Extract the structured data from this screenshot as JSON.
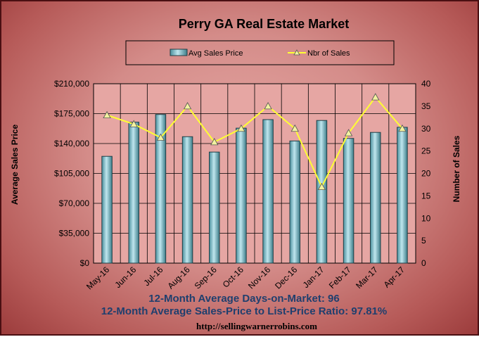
{
  "chart_data": {
    "type": "bar",
    "title": "Perry GA Real Estate Market",
    "categories": [
      "May-16",
      "Jun-16",
      "Jul-16",
      "Aug-16",
      "Sep-16",
      "Oct-16",
      "Nov-16",
      "Dec-16",
      "Jan-17",
      "Feb-17",
      "Mar-17",
      "Apr-17"
    ],
    "series": [
      {
        "name": "Avg Sales Price",
        "type": "bar",
        "axis": "left",
        "values": [
          125000,
          165000,
          174000,
          148000,
          130000,
          158000,
          168000,
          143000,
          167000,
          146000,
          153000,
          159000
        ]
      },
      {
        "name": "Nbr of Sales",
        "type": "line",
        "axis": "right",
        "values": [
          33,
          31,
          28,
          35,
          27,
          30,
          35,
          30,
          17,
          29,
          37,
          30
        ]
      }
    ],
    "ylabel": "Average Sales Price",
    "ylim": [
      0,
      210000
    ],
    "yticks": [
      "$0",
      "$35,000",
      "$70,000",
      "$105,000",
      "$140,000",
      "$175,000",
      "$210,000"
    ],
    "y2label": "Number of Sales",
    "y2lim": [
      0,
      40
    ],
    "y2ticks": [
      "0",
      "5",
      "10",
      "15",
      "20",
      "25",
      "30",
      "35",
      "40"
    ],
    "grid": true,
    "legend": "top-center",
    "colors": {
      "bar": "#7fbac6",
      "line": "#ffff33",
      "marker": "#f2f2a0",
      "plot_bg": "#e6a6a3"
    }
  },
  "notes": {
    "days_on_market": "12-Month Average Days-on-Market: 96",
    "price_ratio": "12-Month Average Sales-Price to List-Price Ratio: 97.81%",
    "url": "http://sellingwarnerrobins.com"
  }
}
